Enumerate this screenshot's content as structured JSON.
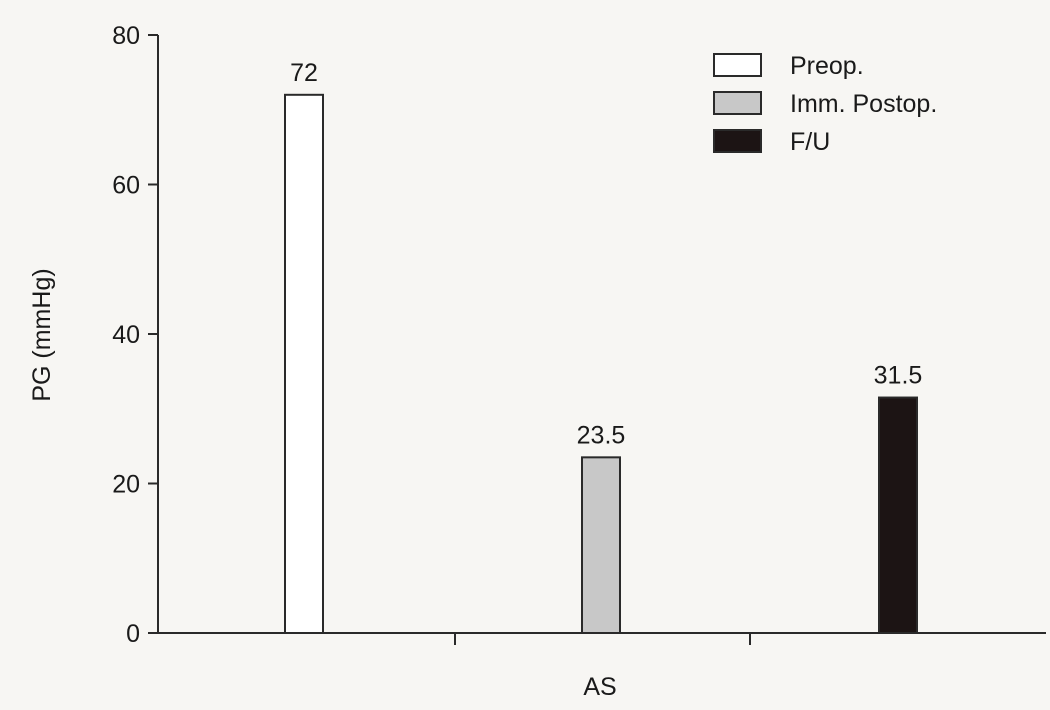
{
  "chart_data": {
    "type": "bar",
    "categories": [
      "AS"
    ],
    "series": [
      {
        "name": "Preop.",
        "values": [
          72
        ],
        "color": "#ffffff"
      },
      {
        "name": "Imm. Postop.",
        "values": [
          23.5
        ],
        "color": "#c8c8c8"
      },
      {
        "name": "F/U",
        "values": [
          31.5
        ],
        "color": "#1c1414"
      }
    ],
    "data_labels": [
      "72",
      "23.5",
      "31.5"
    ],
    "title": "",
    "xlabel": "AS",
    "ylabel": "PG (mmHg)",
    "ylim": [
      0,
      80
    ],
    "yticks": [
      0,
      20,
      40,
      60,
      80
    ],
    "grid": false,
    "legend_position": "top-right"
  }
}
